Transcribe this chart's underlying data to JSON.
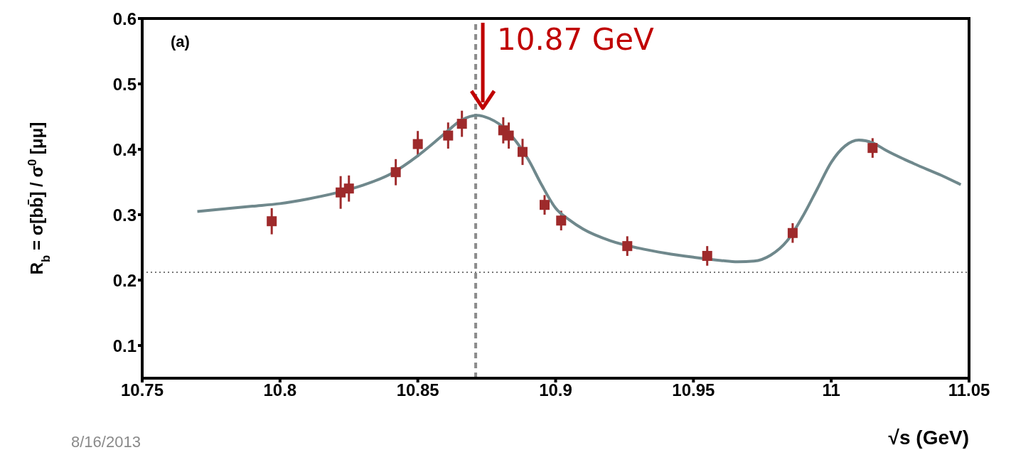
{
  "chart_data": {
    "type": "scatter",
    "xlabel": "√s (GeV)",
    "ylabel": "R$_{b}$ = σ[bb̄] / σ$^{0}$[μμ]",
    "xlim": [
      10.75,
      11.05
    ],
    "xticks": [
      10.75,
      10.8,
      10.85,
      10.9,
      10.95,
      11,
      11.05
    ],
    "ylim": [
      0.05,
      0.6
    ],
    "yticks": [
      0.1,
      0.2,
      0.3,
      0.4,
      0.5,
      0.6
    ],
    "series": [
      {
        "color": "#9e2a2b",
        "marker": "square",
        "x": [
          10.797,
          10.822,
          10.825,
          10.842,
          10.85,
          10.861,
          10.866,
          10.881,
          10.883,
          10.888,
          10.896,
          10.902,
          10.926,
          10.955,
          10.986,
          11.015
        ],
        "values": [
          0.29,
          0.334,
          0.34,
          0.365,
          0.408,
          0.421,
          0.439,
          0.429,
          0.421,
          0.396,
          0.315,
          0.291,
          0.252,
          0.237,
          0.272,
          0.402
        ],
        "errors": [
          0.02,
          0.025,
          0.02,
          0.02,
          0.02,
          0.02,
          0.02,
          0.02,
          0.02,
          0.02,
          0.015,
          0.015,
          0.015,
          0.015,
          0.015,
          0.015
        ]
      },
      {
        "type": "line",
        "color": "#6f888c",
        "marker": "none",
        "line_style": "solid",
        "x": [
          10.77,
          10.78,
          10.79,
          10.8,
          10.81,
          10.82,
          10.83,
          10.84,
          10.85,
          10.855,
          10.86,
          10.866,
          10.8714,
          10.876,
          10.882,
          10.886,
          10.89,
          10.895,
          10.9,
          10.905,
          10.91,
          10.92,
          10.93,
          10.94,
          10.95,
          10.96,
          10.966,
          10.972,
          10.978,
          10.984,
          10.99,
          10.995,
          11.0,
          11.005,
          11.01,
          11.015,
          11.02,
          11.03,
          11.04,
          11.047
        ],
        "values": [
          0.305,
          0.309,
          0.313,
          0.317,
          0.324,
          0.333,
          0.345,
          0.362,
          0.39,
          0.407,
          0.425,
          0.445,
          0.452,
          0.447,
          0.43,
          0.41,
          0.385,
          0.345,
          0.31,
          0.292,
          0.278,
          0.26,
          0.249,
          0.241,
          0.235,
          0.23,
          0.228,
          0.229,
          0.238,
          0.26,
          0.3,
          0.34,
          0.38,
          0.405,
          0.414,
          0.41,
          0.398,
          0.378,
          0.36,
          0.346
        ]
      }
    ],
    "ref_lines": [
      {
        "axis": "x",
        "value": 10.871,
        "label": "10.87 GeV",
        "color": "#8c8c8c",
        "line_style": "dashed"
      },
      {
        "axis": "y",
        "value": 0.212,
        "color": "#777777",
        "line_style": "dotted"
      }
    ],
    "annotations": [
      "(a)",
      "8/16/2013"
    ]
  }
}
